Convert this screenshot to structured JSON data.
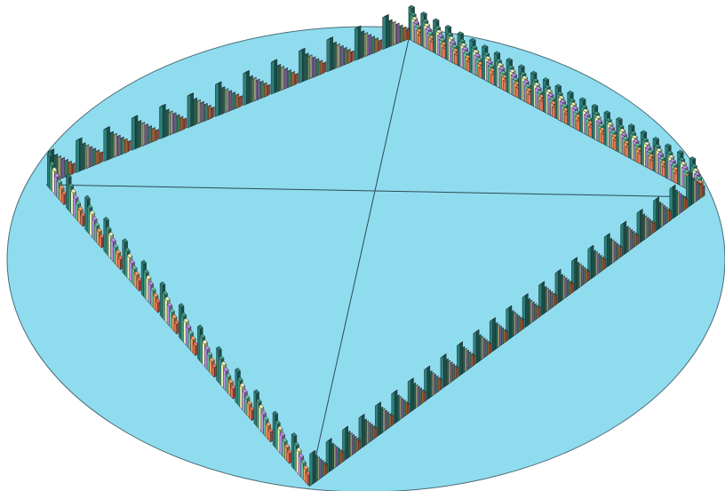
{
  "colors": {
    "background": "#ffffff",
    "floor": "#8fdcef",
    "floor_edge": "#4d6d78",
    "diagonal": "#2e4a54",
    "bar_outline": "#1a1a1a"
  },
  "chart_data": {
    "type": "bar",
    "style": "3d-radial-diamond",
    "title": "",
    "legend": "none",
    "axis_labels": "none",
    "grid": false,
    "series": [
      {
        "color": "#2c7f78",
        "values": [
          10,
          10,
          10,
          10,
          10,
          10,
          10,
          10,
          10,
          10,
          10,
          10,
          10,
          10,
          10,
          10,
          10,
          10,
          10,
          10,
          10,
          10,
          10,
          10,
          10,
          10,
          10,
          10,
          10,
          10,
          10,
          10,
          10,
          10,
          10,
          10,
          10,
          10,
          10,
          10,
          10,
          10,
          10,
          10,
          10,
          10,
          10,
          10,
          10,
          10,
          10,
          10,
          10,
          10,
          10,
          10,
          10,
          10,
          10,
          10,
          10,
          10,
          10,
          10,
          10,
          10,
          10,
          10,
          10,
          10,
          10,
          10,
          10,
          10,
          10,
          10,
          10,
          10,
          10,
          10,
          10,
          10,
          10,
          10,
          10,
          10,
          10,
          10,
          10,
          10,
          10,
          10,
          10,
          10,
          10,
          10
        ]
      },
      {
        "color": "#3f9a84",
        "values": [
          8,
          8,
          8,
          8,
          8,
          8,
          8,
          8,
          8,
          8,
          8,
          8,
          8,
          8,
          8,
          8,
          8,
          8,
          8,
          8,
          8,
          8,
          8,
          8,
          8,
          8,
          8,
          8,
          8,
          8,
          8,
          8,
          8,
          8,
          8,
          8,
          8,
          8,
          8,
          8,
          8,
          8,
          8,
          8,
          8,
          8,
          8,
          8,
          8,
          8,
          8,
          8,
          8,
          8,
          8,
          8,
          8,
          8,
          8,
          8,
          8,
          8,
          8,
          8,
          8,
          8,
          8,
          8,
          8,
          8,
          8,
          8,
          8,
          8,
          8,
          8,
          8,
          8,
          8,
          8,
          8,
          8,
          8,
          8,
          8,
          8,
          8,
          8,
          8,
          8,
          8,
          8,
          8,
          8,
          8,
          8
        ]
      },
      {
        "color": "#eaf2b8",
        "values": [
          7,
          7,
          7,
          7,
          7,
          7,
          7,
          7,
          7,
          7,
          7,
          7,
          7,
          7,
          7,
          7,
          7,
          7,
          7,
          7,
          7,
          7,
          7,
          7,
          7,
          7,
          7,
          7,
          7,
          7,
          7,
          7,
          7,
          7,
          7,
          7,
          7,
          7,
          7,
          7,
          7,
          7,
          7,
          7,
          7,
          7,
          7,
          7,
          7,
          7,
          7,
          7,
          7,
          7,
          7,
          7,
          7,
          7,
          7,
          7,
          7,
          7,
          7,
          7,
          7,
          7,
          7,
          7,
          7,
          7,
          7,
          7,
          7,
          7,
          7,
          7,
          7,
          7,
          7,
          7,
          7,
          7,
          7,
          7,
          7,
          7,
          7,
          7,
          7,
          7,
          7,
          7,
          7,
          7,
          7,
          7
        ]
      },
      {
        "color": "#b592e6",
        "values": [
          6,
          6,
          6,
          6,
          6,
          6,
          6,
          6,
          6,
          6,
          6,
          6,
          6,
          6,
          6,
          6,
          6,
          6,
          6,
          6,
          6,
          6,
          6,
          6,
          6,
          6,
          6,
          6,
          6,
          6,
          6,
          6,
          6,
          6,
          6,
          6,
          6,
          6,
          6,
          6,
          6,
          6,
          6,
          6,
          6,
          6,
          6,
          6,
          6,
          6,
          6,
          6,
          6,
          6,
          6,
          6,
          6,
          6,
          6,
          6,
          6,
          6,
          6,
          6,
          6,
          6,
          6,
          6,
          6,
          6,
          6,
          6,
          6,
          6,
          6,
          6,
          6,
          6,
          6,
          6,
          6,
          6,
          6,
          6,
          6,
          6,
          6,
          6,
          6,
          6,
          6,
          6,
          6,
          6,
          6,
          6
        ]
      },
      {
        "color": "#63bfa0",
        "values": [
          5,
          5,
          5,
          5,
          5,
          5,
          5,
          5,
          5,
          5,
          5,
          5,
          5,
          5,
          5,
          5,
          5,
          5,
          5,
          5,
          5,
          5,
          5,
          5,
          5,
          5,
          5,
          5,
          5,
          5,
          5,
          5,
          5,
          5,
          5,
          5,
          5,
          5,
          5,
          5,
          5,
          5,
          5,
          5,
          5,
          5,
          5,
          5,
          5,
          5,
          5,
          5,
          5,
          5,
          5,
          5,
          5,
          5,
          5,
          5,
          5,
          5,
          5,
          5,
          5,
          5,
          5,
          5,
          5,
          5,
          5,
          5,
          5,
          5,
          5,
          5,
          5,
          5,
          5,
          5,
          5,
          5,
          5,
          5,
          5,
          5,
          5,
          5,
          5,
          5,
          5,
          5,
          5,
          5,
          5,
          5
        ]
      },
      {
        "color": "#f0a05e",
        "values": [
          4,
          4,
          4,
          4,
          4,
          4,
          4,
          4,
          4,
          4,
          4,
          4,
          4,
          4,
          4,
          4,
          4,
          4,
          4,
          4,
          4,
          4,
          4,
          4,
          4,
          4,
          4,
          4,
          4,
          4,
          4,
          4,
          4,
          4,
          4,
          4,
          4,
          4,
          4,
          4,
          4,
          4,
          4,
          4,
          4,
          4,
          4,
          4,
          4,
          4,
          4,
          4,
          4,
          4,
          4,
          4,
          4,
          4,
          4,
          4,
          4,
          4,
          4,
          4,
          4,
          4,
          4,
          4,
          4,
          4,
          4,
          4,
          4,
          4,
          4,
          4,
          4,
          4,
          4,
          4,
          4,
          4,
          4,
          4,
          4,
          4,
          4,
          4,
          4,
          4,
          4,
          4,
          4,
          4,
          4,
          4
        ]
      },
      {
        "color": "#e8745a",
        "values": [
          3,
          3,
          3,
          3,
          3,
          3,
          3,
          3,
          3,
          3,
          3,
          3,
          3,
          3,
          3,
          3,
          3,
          3,
          3,
          3,
          3,
          3,
          3,
          3,
          3,
          3,
          3,
          3,
          3,
          3,
          3,
          3,
          3,
          3,
          3,
          3,
          3,
          3,
          3,
          3,
          3,
          3,
          3,
          3,
          3,
          3,
          3,
          3,
          3,
          3,
          3,
          3,
          3,
          3,
          3,
          3,
          3,
          3,
          3,
          3,
          3,
          3,
          3,
          3,
          3,
          3,
          3,
          3,
          3,
          3,
          3,
          3,
          3,
          3,
          3,
          3,
          3,
          3,
          3,
          3,
          3,
          3,
          3,
          3,
          3,
          3,
          3,
          3,
          3,
          3,
          3,
          3,
          3,
          3,
          3,
          3
        ]
      }
    ],
    "groups_per_side": [
      13,
      24,
      24,
      14
    ]
  }
}
